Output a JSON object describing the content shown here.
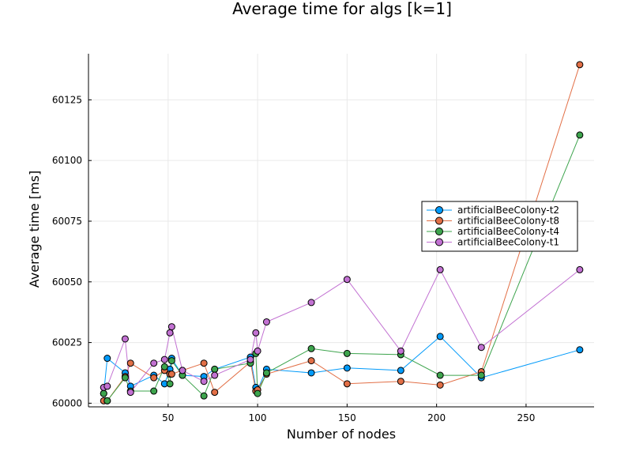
{
  "chart_data": {
    "type": "line",
    "title": "Average time for algs [k=1]",
    "xlabel": "Number of nodes",
    "ylabel": "Average time [ms]",
    "xlim": [
      5.5,
      288
    ],
    "ylim": [
      59998.5,
      60144
    ],
    "xticks": [
      50,
      100,
      150,
      200,
      250
    ],
    "yticks": [
      60000,
      60025,
      60050,
      60075,
      60100,
      60125
    ],
    "legend_position": "right",
    "series": [
      {
        "name": "artificialBeeColony-t2",
        "color": "#009AFA",
        "x": [
          14,
          16,
          26,
          29,
          42,
          48,
          51,
          52,
          58,
          70,
          76,
          96,
          99,
          100,
          105,
          130,
          150,
          180,
          202,
          225,
          280
        ],
        "y": [
          60004,
          60018.5,
          60012.5,
          60007,
          60011.5,
          60008,
          60014,
          60018.5,
          60011.5,
          60011,
          60014,
          60019,
          60006.5,
          60005.5,
          60014,
          60012.5,
          60014.5,
          60013.5,
          60027.5,
          60010.5,
          60022
        ]
      },
      {
        "name": "artificialBeeColony-t8",
        "color": "#E26F46",
        "x": [
          14,
          16,
          26,
          29,
          42,
          48,
          51,
          52,
          58,
          70,
          76,
          96,
          99,
          100,
          105,
          130,
          150,
          180,
          202,
          225,
          280
        ],
        "y": [
          60001,
          60001,
          60011,
          60016.5,
          60010.5,
          60013.5,
          60012,
          60012,
          60013.5,
          60016.5,
          60004.5,
          60017,
          60005,
          60005.5,
          60012,
          60017.5,
          60008,
          60009,
          60007.5,
          60013,
          60139.5
        ]
      },
      {
        "name": "artificialBeeColony-t4",
        "color": "#3DA44D",
        "x": [
          14,
          16,
          26,
          29,
          42,
          48,
          51,
          52,
          58,
          70,
          76,
          96,
          99,
          100,
          105,
          130,
          150,
          180,
          202,
          225,
          280
        ],
        "y": [
          60004,
          60001,
          60010.5,
          60005,
          60005,
          60015,
          60008,
          60017.5,
          60011.5,
          60003,
          60014,
          60016.5,
          60020.5,
          60004,
          60012.5,
          60022.5,
          60020.5,
          60020,
          60011.5,
          60011.5,
          60110.5
        ]
      },
      {
        "name": "artificialBeeColony-t1",
        "color": "#C271D2",
        "x": [
          14,
          16,
          26,
          29,
          42,
          48,
          51,
          52,
          58,
          70,
          76,
          96,
          99,
          100,
          105,
          130,
          150,
          180,
          202,
          225,
          280
        ],
        "y": [
          60006.5,
          60007,
          60026.5,
          60004.5,
          60016.5,
          60018,
          60029,
          60031.5,
          60013.5,
          60009,
          60011.5,
          60018,
          60029,
          60021.5,
          60033.5,
          60041.5,
          60051,
          60021.5,
          60055,
          60023,
          60055
        ]
      }
    ]
  }
}
